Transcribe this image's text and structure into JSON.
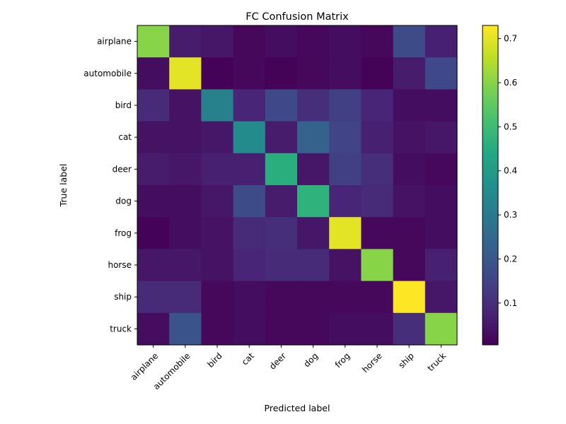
{
  "chart_data": {
    "type": "heatmap",
    "title": "FC Confusion Matrix",
    "xlabel": "Predicted label",
    "ylabel": "True label",
    "x_categories": [
      "airplane",
      "automobile",
      "bird",
      "cat",
      "deer",
      "dog",
      "frog",
      "horse",
      "ship",
      "truck"
    ],
    "y_categories": [
      "airplane",
      "automobile",
      "bird",
      "cat",
      "deer",
      "dog",
      "frog",
      "horse",
      "ship",
      "truck"
    ],
    "colormap": "viridis",
    "color_range": [
      0.005,
      0.73
    ],
    "colorbar_ticks": [
      0.1,
      0.2,
      0.3,
      0.4,
      0.5,
      0.6,
      0.7
    ],
    "colorbar_tick_labels": [
      "0.1",
      "0.2",
      "0.3",
      "0.4",
      "0.5",
      "0.6",
      "0.7"
    ],
    "values": [
      [
        0.6,
        0.06,
        0.05,
        0.02,
        0.03,
        0.02,
        0.03,
        0.02,
        0.17,
        0.07
      ],
      [
        0.03,
        0.7,
        0.01,
        0.02,
        0.01,
        0.02,
        0.03,
        0.01,
        0.06,
        0.16
      ],
      [
        0.09,
        0.04,
        0.32,
        0.08,
        0.16,
        0.1,
        0.14,
        0.08,
        0.03,
        0.03
      ],
      [
        0.04,
        0.04,
        0.05,
        0.35,
        0.06,
        0.23,
        0.15,
        0.07,
        0.04,
        0.05
      ],
      [
        0.06,
        0.05,
        0.07,
        0.07,
        0.46,
        0.05,
        0.14,
        0.1,
        0.03,
        0.02
      ],
      [
        0.03,
        0.03,
        0.05,
        0.17,
        0.06,
        0.47,
        0.08,
        0.09,
        0.04,
        0.03
      ],
      [
        0.01,
        0.03,
        0.04,
        0.09,
        0.1,
        0.05,
        0.7,
        0.02,
        0.02,
        0.03
      ],
      [
        0.05,
        0.05,
        0.04,
        0.08,
        0.09,
        0.09,
        0.04,
        0.6,
        0.02,
        0.07
      ],
      [
        0.09,
        0.09,
        0.02,
        0.03,
        0.02,
        0.02,
        0.02,
        0.02,
        0.73,
        0.05
      ],
      [
        0.03,
        0.19,
        0.02,
        0.03,
        0.02,
        0.02,
        0.03,
        0.03,
        0.1,
        0.6
      ]
    ]
  }
}
